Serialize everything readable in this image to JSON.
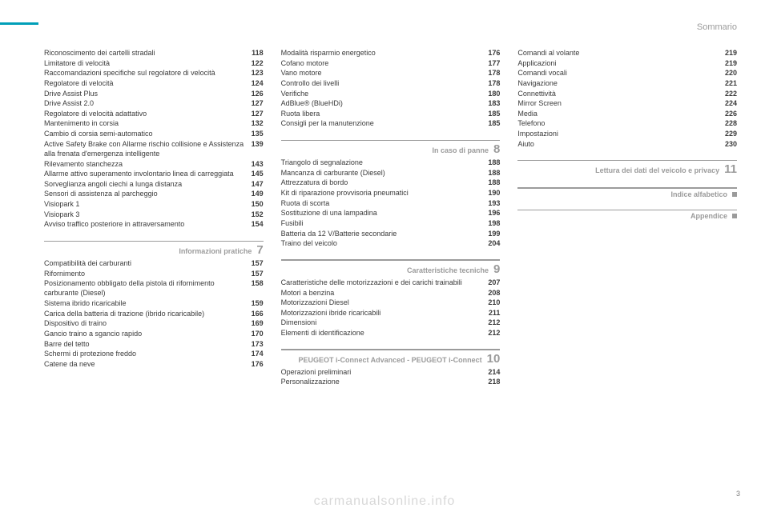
{
  "header": "Sommario",
  "watermark": "carmanualsonline.info",
  "page_number": "3",
  "columns": [
    {
      "blocks": [
        {
          "type": "items",
          "items": [
            {
              "label": "Riconoscimento dei cartelli stradali",
              "page": "118"
            },
            {
              "label": "Limitatore di velocità",
              "page": "122"
            },
            {
              "label": "Raccomandazioni specifiche sul regolatore di velocità",
              "page": "123"
            },
            {
              "label": "Regolatore di velocità",
              "page": "124"
            },
            {
              "label": "Drive Assist Plus",
              "page": "126"
            },
            {
              "label": "Drive Assist 2.0",
              "page": "127"
            },
            {
              "label": "Regolatore di velocità adattativo",
              "page": "127"
            },
            {
              "label": "Mantenimento in corsia",
              "page": "132"
            },
            {
              "label": "Cambio di corsia semi-automatico",
              "page": "135"
            },
            {
              "label": "Active Safety Brake con Allarme rischio collisione e Assistenza alla frenata d'emergenza intelligente",
              "page": "139"
            },
            {
              "label": "Rilevamento stanchezza",
              "page": "143"
            },
            {
              "label": "Allarme attivo superamento involontario linea di carreggiata",
              "page": "145"
            },
            {
              "label": "Sorveglianza angoli ciechi a lunga distanza",
              "page": "147"
            },
            {
              "label": "Sensori di assistenza al parcheggio",
              "page": "149"
            },
            {
              "label": "Visiopark 1",
              "page": "150"
            },
            {
              "label": "Visiopark 3",
              "page": "152"
            },
            {
              "label": "Avviso traffico posteriore in attraversamento",
              "page": "154"
            }
          ]
        },
        {
          "type": "section",
          "title": "Informazioni pratiche",
          "num": "7"
        },
        {
          "type": "items",
          "items": [
            {
              "label": "Compatibilità dei carburanti",
              "page": "157"
            },
            {
              "label": "Rifornimento",
              "page": "157"
            },
            {
              "label": "Posizionamento obbligato della pistola di rifornimento carburante (Diesel)",
              "page": "158"
            },
            {
              "label": "Sistema ibrido ricaricabile",
              "page": "159"
            },
            {
              "label": "Carica della batteria di trazione (ibrido ricaricabile)",
              "page": "166"
            },
            {
              "label": "Dispositivo di traino",
              "page": "169"
            },
            {
              "label": "Gancio traino a sgancio rapido",
              "page": "170"
            },
            {
              "label": "Barre del tetto",
              "page": "173"
            },
            {
              "label": "Schermi di protezione freddo",
              "page": "174"
            },
            {
              "label": "Catene da neve",
              "page": "176"
            }
          ]
        }
      ]
    },
    {
      "blocks": [
        {
          "type": "items",
          "items": [
            {
              "label": "Modalità risparmio energetico",
              "page": "176"
            },
            {
              "label": "Cofano motore",
              "page": "177"
            },
            {
              "label": "Vano motore",
              "page": "178"
            },
            {
              "label": "Controllo dei livelli",
              "page": "178"
            },
            {
              "label": "Verifiche",
              "page": "180"
            },
            {
              "label": "AdBlue® (BlueHDi)",
              "page": "183"
            },
            {
              "label": "Ruota libera",
              "page": "185"
            },
            {
              "label": "Consigli per la manutenzione",
              "page": "185"
            }
          ]
        },
        {
          "type": "section",
          "title": "In caso di panne",
          "num": "8"
        },
        {
          "type": "items",
          "items": [
            {
              "label": "Triangolo di segnalazione",
              "page": "188"
            },
            {
              "label": "Mancanza di carburante (Diesel)",
              "page": "188"
            },
            {
              "label": "Attrezzatura di bordo",
              "page": "188"
            },
            {
              "label": "Kit di riparazione provvisoria pneumatici",
              "page": "190"
            },
            {
              "label": "Ruota di scorta",
              "page": "193"
            },
            {
              "label": "Sostituzione di una lampadina",
              "page": "196"
            },
            {
              "label": "Fusibili",
              "page": "198"
            },
            {
              "label": "Batteria da 12 V/Batterie secondarie",
              "page": "199"
            },
            {
              "label": "Traino del veicolo",
              "page": "204"
            }
          ]
        },
        {
          "type": "section",
          "title": "Caratteristiche tecniche",
          "num": "9"
        },
        {
          "type": "items",
          "items": [
            {
              "label": "Caratteristiche delle motorizzazioni e dei carichi trainabili",
              "page": "207"
            },
            {
              "label": "Motori a benzina",
              "page": "208"
            },
            {
              "label": "Motorizzazioni Diesel",
              "page": "210"
            },
            {
              "label": "Motorizzazioni ibride ricaricabili",
              "page": "211"
            },
            {
              "label": "Dimensioni",
              "page": "212"
            },
            {
              "label": "Elementi di identificazione",
              "page": "212"
            }
          ]
        },
        {
          "type": "section",
          "title": "PEUGEOT i-Connect Advanced - PEUGEOT i-Connect",
          "num": "10"
        },
        {
          "type": "items",
          "items": [
            {
              "label": "Operazioni preliminari",
              "page": "214"
            },
            {
              "label": "Personalizzazione",
              "page": "218"
            }
          ]
        }
      ]
    },
    {
      "blocks": [
        {
          "type": "items",
          "items": [
            {
              "label": "Comandi al volante",
              "page": "219"
            },
            {
              "label": "Applicazioni",
              "page": "219"
            },
            {
              "label": "Comandi vocali",
              "page": "220"
            },
            {
              "label": "Navigazione",
              "page": "221"
            },
            {
              "label": "Connettività",
              "page": "222"
            },
            {
              "label": "Mirror Screen",
              "page": "224"
            },
            {
              "label": "Media",
              "page": "226"
            },
            {
              "label": "Telefono",
              "page": "228"
            },
            {
              "label": "Impostazioni",
              "page": "229"
            },
            {
              "label": "Aiuto",
              "page": "230"
            }
          ]
        },
        {
          "type": "section",
          "title": "Lettura dei dati del veicolo e privacy",
          "num": "11"
        },
        {
          "type": "section-box",
          "title": "Indice alfabetico"
        },
        {
          "type": "section-box",
          "title": "Appendice"
        }
      ]
    }
  ]
}
